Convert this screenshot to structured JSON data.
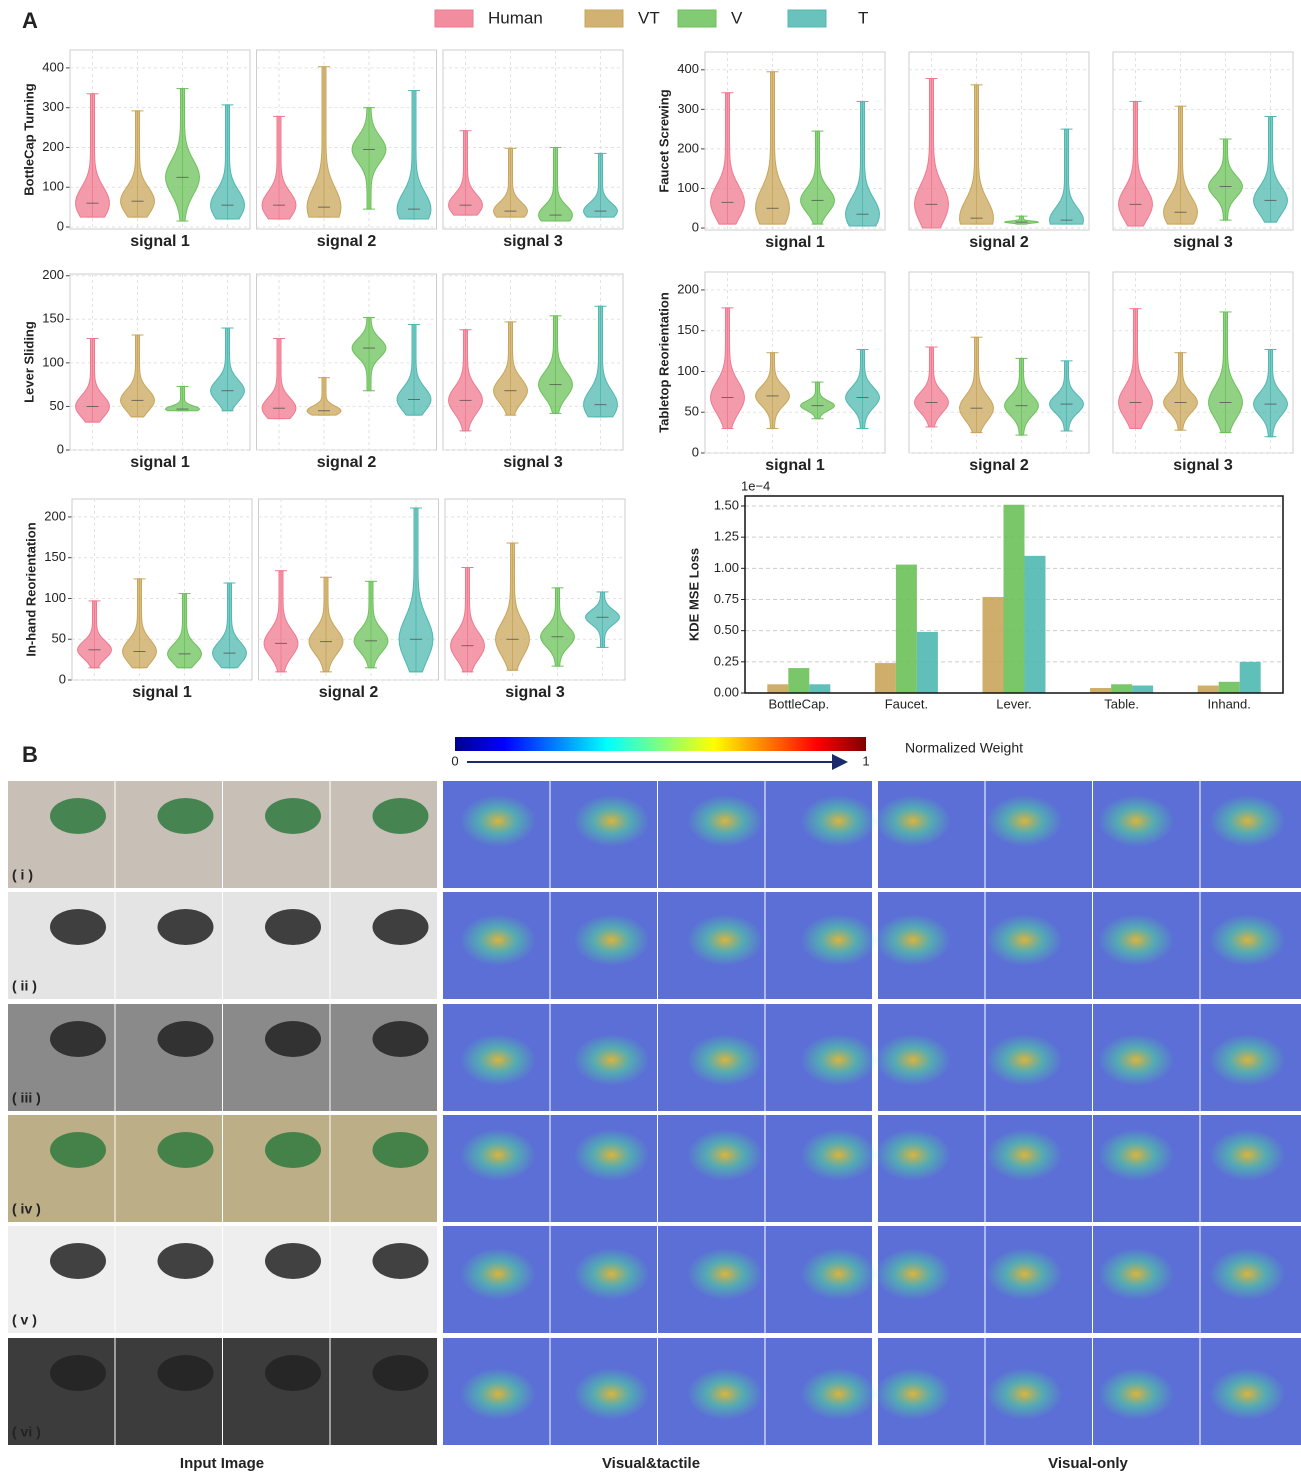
{
  "panel_a_label": "A",
  "legend": [
    {
      "name": "Human",
      "color": "#f0798f"
    },
    {
      "name": "VT",
      "color": "#c9a55a"
    },
    {
      "name": "V",
      "color": "#6cc15a"
    },
    {
      "name": "T",
      "color": "#4fb8b0"
    }
  ],
  "chart_data": [
    {
      "type": "violin",
      "ylabel": "BottleCap Turning",
      "ylim": [
        -5,
        445
      ],
      "yticks": [
        0,
        100,
        200,
        300,
        400
      ],
      "panels": [
        {
          "title": "signal 1",
          "min": [
            25,
            25,
            15,
            20
          ],
          "median": [
            60,
            65,
            125,
            55
          ],
          "max": [
            335,
            292,
            348,
            307
          ]
        },
        {
          "title": "signal 2",
          "min": [
            20,
            25,
            45,
            20
          ],
          "median": [
            55,
            50,
            195,
            45
          ],
          "max": [
            278,
            403,
            300,
            343
          ]
        },
        {
          "title": "signal 3",
          "min": [
            30,
            25,
            15,
            25
          ],
          "median": [
            55,
            40,
            30,
            40
          ],
          "max": [
            242,
            198,
            200,
            185
          ]
        }
      ]
    },
    {
      "type": "violin",
      "ylabel": "Faucet Screwing",
      "ylim": [
        -5,
        445
      ],
      "yticks": [
        0,
        100,
        200,
        300,
        400
      ],
      "panels": [
        {
          "title": "signal 1",
          "min": [
            10,
            10,
            10,
            5
          ],
          "median": [
            65,
            50,
            70,
            35
          ],
          "max": [
            342,
            395,
            245,
            320
          ]
        },
        {
          "title": "signal 2",
          "min": [
            0,
            10,
            10,
            10
          ],
          "median": [
            60,
            25,
            15,
            20
          ],
          "max": [
            378,
            362,
            30,
            250
          ]
        },
        {
          "title": "signal 3",
          "min": [
            5,
            10,
            20,
            15
          ],
          "median": [
            60,
            40,
            105,
            70
          ],
          "max": [
            320,
            308,
            225,
            282
          ]
        }
      ]
    },
    {
      "type": "violin",
      "ylabel": "Lever Sliding",
      "ylim": [
        0,
        202
      ],
      "yticks": [
        0,
        50,
        100,
        150,
        200
      ],
      "panels": [
        {
          "title": "signal 1",
          "min": [
            32,
            38,
            45,
            45
          ],
          "median": [
            50,
            57,
            47,
            68
          ],
          "max": [
            128,
            132,
            73,
            140
          ]
        },
        {
          "title": "signal 2",
          "min": [
            36,
            40,
            68,
            40
          ],
          "median": [
            48,
            45,
            117,
            58
          ],
          "max": [
            128,
            83,
            152,
            144
          ]
        },
        {
          "title": "signal 3",
          "min": [
            22,
            40,
            42,
            38
          ],
          "median": [
            57,
            68,
            75,
            52
          ],
          "max": [
            138,
            147,
            154,
            165
          ]
        }
      ]
    },
    {
      "type": "violin",
      "ylabel": "Tabletop Reorientation",
      "ylim": [
        0,
        222
      ],
      "yticks": [
        0,
        50,
        100,
        150,
        200
      ],
      "panels": [
        {
          "title": "signal 1",
          "min": [
            30,
            30,
            42,
            30
          ],
          "median": [
            68,
            70,
            58,
            68
          ],
          "max": [
            178,
            123,
            87,
            127
          ]
        },
        {
          "title": "signal 2",
          "min": [
            32,
            25,
            22,
            27
          ],
          "median": [
            62,
            55,
            58,
            60
          ],
          "max": [
            130,
            142,
            116,
            113
          ]
        },
        {
          "title": "signal 3",
          "min": [
            30,
            28,
            25,
            20
          ],
          "median": [
            62,
            62,
            62,
            60
          ],
          "max": [
            177,
            123,
            173,
            127
          ]
        }
      ]
    },
    {
      "type": "violin",
      "ylabel": "In-hand Reorientation",
      "ylim": [
        0,
        222
      ],
      "yticks": [
        0,
        50,
        100,
        150,
        200
      ],
      "panels": [
        {
          "title": "signal 1",
          "min": [
            15,
            15,
            15,
            15
          ],
          "median": [
            37,
            35,
            32,
            33
          ],
          "max": [
            97,
            124,
            106,
            119
          ]
        },
        {
          "title": "signal 2",
          "min": [
            10,
            10,
            15,
            10
          ],
          "median": [
            45,
            47,
            48,
            50
          ],
          "max": [
            134,
            126,
            121,
            211
          ]
        },
        {
          "title": "signal 3",
          "min": [
            10,
            12,
            17,
            40
          ],
          "median": [
            42,
            50,
            53,
            77
          ],
          "max": [
            138,
            168,
            113,
            108
          ]
        }
      ]
    },
    {
      "type": "bar",
      "ylabel": "KDE MSE Loss",
      "offset_label": "1e−4",
      "categories": [
        "BottleCap.",
        "Faucet.",
        "Lever.",
        "Table.",
        "Inhand."
      ],
      "ylim": [
        0,
        1.58
      ],
      "yticks": [
        {
          "value": 0,
          "label": "0.00"
        },
        {
          "value": 0.25,
          "label": "0.25"
        },
        {
          "value": 0.5,
          "label": "0.50"
        },
        {
          "value": 0.75,
          "label": "0.75"
        },
        {
          "value": 1,
          "label": "1.00"
        },
        {
          "value": 1.25,
          "label": "1.25"
        },
        {
          "value": 1.5,
          "label": "1.50"
        }
      ],
      "grid": true,
      "series": [
        {
          "name": "VT",
          "color": "#c9a55a",
          "values": [
            0.07,
            0.24,
            0.77,
            0.04,
            0.06
          ]
        },
        {
          "name": "V",
          "color": "#6cc15a",
          "values": [
            0.2,
            1.03,
            1.51,
            0.07,
            0.09
          ]
        },
        {
          "name": "T",
          "color": "#4fb8b0",
          "values": [
            0.07,
            0.49,
            1.1,
            0.06,
            0.25
          ]
        }
      ]
    }
  ],
  "panel_b": {
    "label": "B",
    "colorbar": {
      "ticks": [
        0,
        1
      ],
      "label": "Normalized Weight"
    },
    "rows": [
      "( i )",
      "( ii )",
      "( iii )",
      "( iv )",
      "( v )",
      "( vi )"
    ],
    "columns": [
      "Input Image",
      "Visual&tactile",
      "Visual-only"
    ]
  }
}
